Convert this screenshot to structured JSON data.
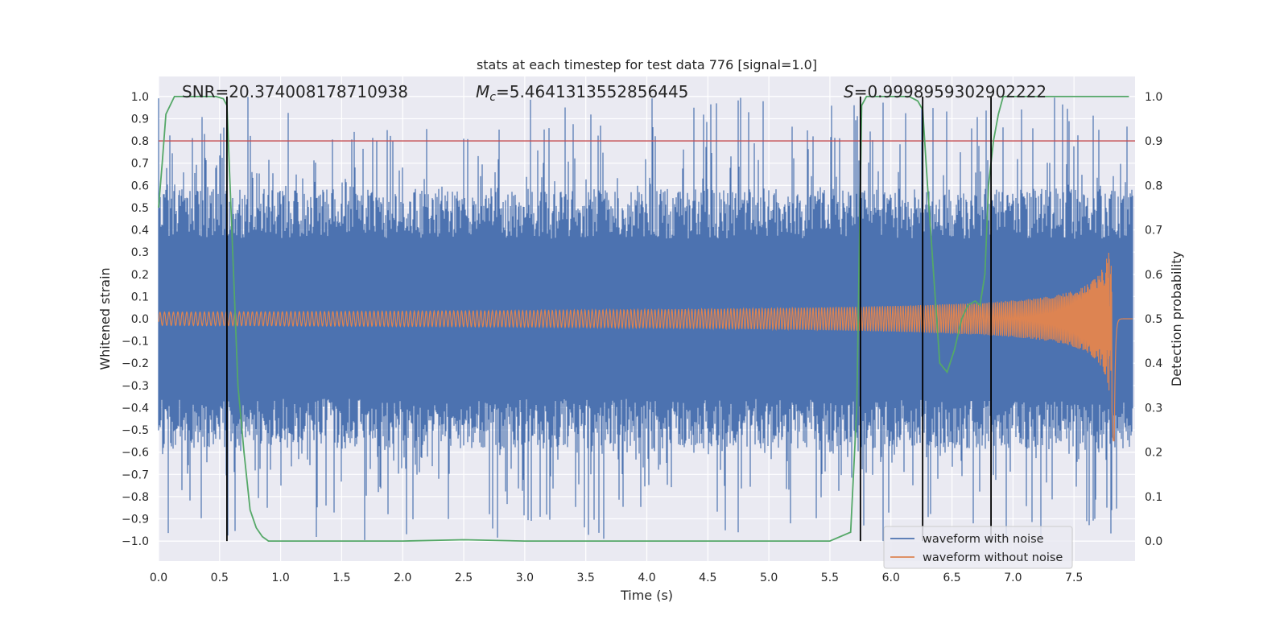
{
  "chart_data": {
    "type": "line",
    "title": "stats at each timestep for test data 776 [signal=1.0]",
    "xlabel": "Time (s)",
    "ylabel": "Whitened strain",
    "y2label": "Detection probability",
    "xlim": [
      0.0,
      8.0
    ],
    "ylim": [
      -1.09,
      1.09
    ],
    "y2lim": [
      -0.045,
      1.045
    ],
    "x_ticks": [
      "0.0",
      "0.5",
      "1.0",
      "1.5",
      "2.0",
      "2.5",
      "3.0",
      "3.5",
      "4.0",
      "4.5",
      "5.0",
      "5.5",
      "6.0",
      "6.5",
      "7.0",
      "7.5"
    ],
    "y_ticks": [
      "1.0",
      "0.9",
      "0.8",
      "0.7",
      "0.6",
      "0.5",
      "0.4",
      "0.3",
      "0.2",
      "0.1",
      "0.0",
      "−0.1",
      "−0.2",
      "−0.3",
      "−0.4",
      "−0.5",
      "−0.6",
      "−0.7",
      "−0.8",
      "−0.9",
      "−1.0"
    ],
    "y2_ticks": [
      "1.0",
      "0.9",
      "0.8",
      "0.7",
      "0.6",
      "0.5",
      "0.4",
      "0.3",
      "0.2",
      "0.1",
      "0.0"
    ],
    "annotations": {
      "snr": "SNR=20.374008178710938",
      "mc_symbol": "M",
      "mc_sub": "c",
      "mc_value": "=5.4641313552856445",
      "s_symbol": "S",
      "s_value": "=0.9998959302902222"
    },
    "threshold": {
      "y2": 0.9,
      "color": "#c44e52"
    },
    "vertical_lines_x": [
      0.56,
      5.75,
      6.26,
      6.82
    ],
    "series": [
      {
        "name": "waveform with noise",
        "color": "#4c72b0",
        "description": "noisy whitened strain, mostly within ±0.5 with spikes up to about ±1.0",
        "x_range": [
          0.0,
          7.98
        ],
        "typical_amplitude": 0.45,
        "max_amplitude": 1.0
      },
      {
        "name": "waveform without noise",
        "color": "#dd8452",
        "description": "chirp waveform growing in amplitude toward merger near 7.83 s",
        "x_range": [
          0.0,
          7.98
        ],
        "start_amplitude": 0.03,
        "peak_amplitude": 0.62,
        "merger_time": 7.83
      },
      {
        "name": "detection probability",
        "color": "#55a868",
        "axis": "y2",
        "x": [
          0.0,
          0.03,
          0.06,
          0.13,
          0.2,
          0.3,
          0.4,
          0.47,
          0.53,
          0.56,
          0.6,
          0.65,
          0.7,
          0.75,
          0.8,
          0.85,
          0.9,
          0.95,
          1.0,
          1.5,
          2.0,
          2.5,
          3.0,
          3.5,
          4.0,
          4.5,
          5.0,
          5.5,
          5.67,
          5.72,
          5.76,
          5.8,
          5.85,
          5.95,
          6.05,
          6.15,
          6.22,
          6.26,
          6.3,
          6.35,
          6.4,
          6.46,
          6.52,
          6.58,
          6.63,
          6.69,
          6.73,
          6.77,
          6.8,
          6.84,
          6.88,
          6.92,
          7.0,
          7.5,
          7.95
        ],
        "y": [
          0.75,
          0.85,
          0.96,
          1.0,
          1.0,
          1.0,
          1.0,
          1.0,
          0.995,
          0.98,
          0.7,
          0.35,
          0.2,
          0.07,
          0.03,
          0.01,
          0.0,
          0.0,
          0.0,
          0.0,
          0.0,
          0.003,
          0.0,
          0.0,
          0.0,
          0.0,
          0.0,
          0.0,
          0.02,
          0.3,
          0.98,
          1.0,
          1.0,
          1.0,
          1.0,
          1.0,
          0.99,
          0.97,
          0.8,
          0.6,
          0.4,
          0.38,
          0.43,
          0.5,
          0.53,
          0.54,
          0.53,
          0.6,
          0.8,
          0.9,
          0.96,
          1.0,
          1.0,
          1.0,
          1.0
        ]
      }
    ],
    "legend": {
      "position": "lower-right",
      "entries": [
        {
          "label": "waveform with noise",
          "color": "#4c72b0"
        },
        {
          "label": "waveform without noise",
          "color": "#dd8452"
        }
      ]
    }
  }
}
